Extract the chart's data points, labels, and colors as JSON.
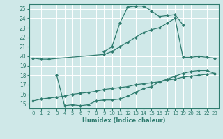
{
  "background_color": "#cfe8e8",
  "grid_color": "#ffffff",
  "line_color": "#2e7b6e",
  "xlabel": "Humidex (Indice chaleur)",
  "xlim": [
    -0.5,
    23.5
  ],
  "ylim": [
    14.5,
    25.5
  ],
  "xticks": [
    0,
    1,
    2,
    3,
    4,
    5,
    6,
    7,
    8,
    9,
    10,
    11,
    12,
    13,
    14,
    15,
    16,
    17,
    18,
    19,
    20,
    21,
    22,
    23
  ],
  "yticks": [
    15,
    16,
    17,
    18,
    19,
    20,
    21,
    22,
    23,
    24,
    25
  ],
  "series": [
    {
      "x": [
        9,
        10,
        11,
        12,
        13,
        14,
        15,
        16,
        17,
        18,
        19
      ],
      "y": [
        20.5,
        21.0,
        23.5,
        25.2,
        25.3,
        25.3,
        24.8,
        24.2,
        24.3,
        24.4,
        23.3
      ]
    },
    {
      "x": [
        0,
        1,
        2,
        9,
        10,
        11,
        12,
        13,
        14,
        15,
        16,
        17,
        18,
        19,
        20,
        21,
        22,
        23
      ],
      "y": [
        19.8,
        19.7,
        19.7,
        20.2,
        20.5,
        21.0,
        21.5,
        22.0,
        22.5,
        22.8,
        23.0,
        23.5,
        24.0,
        19.9,
        19.9,
        20.0,
        19.9,
        19.8
      ]
    },
    {
      "x": [
        3,
        4,
        5,
        6,
        7,
        8,
        9,
        10,
        11,
        12,
        13,
        14,
        15,
        16,
        17,
        18,
        19,
        20,
        21,
        22,
        23
      ],
      "y": [
        18.0,
        14.8,
        14.9,
        14.8,
        14.9,
        15.3,
        15.4,
        15.4,
        15.5,
        15.8,
        16.2,
        16.6,
        16.8,
        17.3,
        17.6,
        17.9,
        18.2,
        18.4,
        18.5,
        18.5,
        18.2
      ]
    },
    {
      "x": [
        0,
        1,
        2,
        3,
        4,
        5,
        6,
        7,
        8,
        9,
        10,
        11,
        12,
        13,
        14,
        15,
        16,
        17,
        18,
        19,
        20,
        21,
        22,
        23
      ],
      "y": [
        15.3,
        15.5,
        15.6,
        15.7,
        15.8,
        16.0,
        16.1,
        16.2,
        16.3,
        16.5,
        16.6,
        16.7,
        16.8,
        17.0,
        17.1,
        17.2,
        17.3,
        17.5,
        17.6,
        17.8,
        17.9,
        18.0,
        18.1,
        18.2
      ]
    }
  ]
}
